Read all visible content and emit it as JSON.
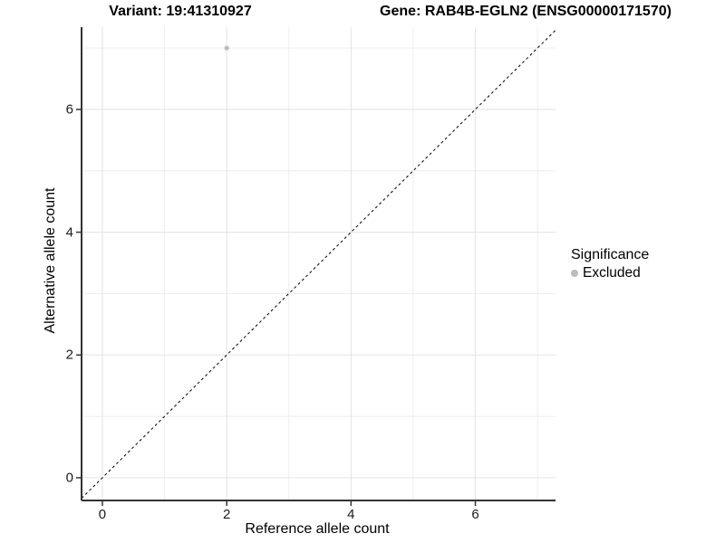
{
  "titles": {
    "variant": "Variant: 19:41310927",
    "gene": "Gene: RAB4B-EGLN2 (ENSG00000171570)"
  },
  "legend": {
    "title": "Significance",
    "items": [
      {
        "label": "Excluded",
        "color": "#bcbcbc"
      }
    ]
  },
  "chart_data": {
    "type": "scatter",
    "xlabel": "Reference allele count",
    "ylabel": "Alternative allele count",
    "xlim": [
      -0.335,
      7.29
    ],
    "ylim": [
      -0.37,
      7.34
    ],
    "x_ticks": [
      0,
      2,
      4,
      6
    ],
    "y_ticks": [
      0,
      2,
      4,
      6
    ],
    "x_minor_ticks": [
      1,
      3,
      5,
      7
    ],
    "y_minor_ticks": [
      1,
      3,
      5,
      7
    ],
    "grid": true,
    "legend_position": "right",
    "series": [
      {
        "name": "Excluded",
        "color": "#bcbcbc",
        "point_radius": 2.6,
        "points": [
          {
            "x": 2,
            "y": 7
          }
        ]
      }
    ],
    "reference_line": {
      "type": "identity",
      "slope": 1,
      "intercept": 0,
      "style": "dashed",
      "color": "#000000"
    }
  },
  "colors": {
    "background": "#ffffff",
    "major_grid": "#e3e3e3",
    "minor_grid": "#ededed",
    "axis_line": "#333333",
    "tick_mark": "#333333"
  }
}
